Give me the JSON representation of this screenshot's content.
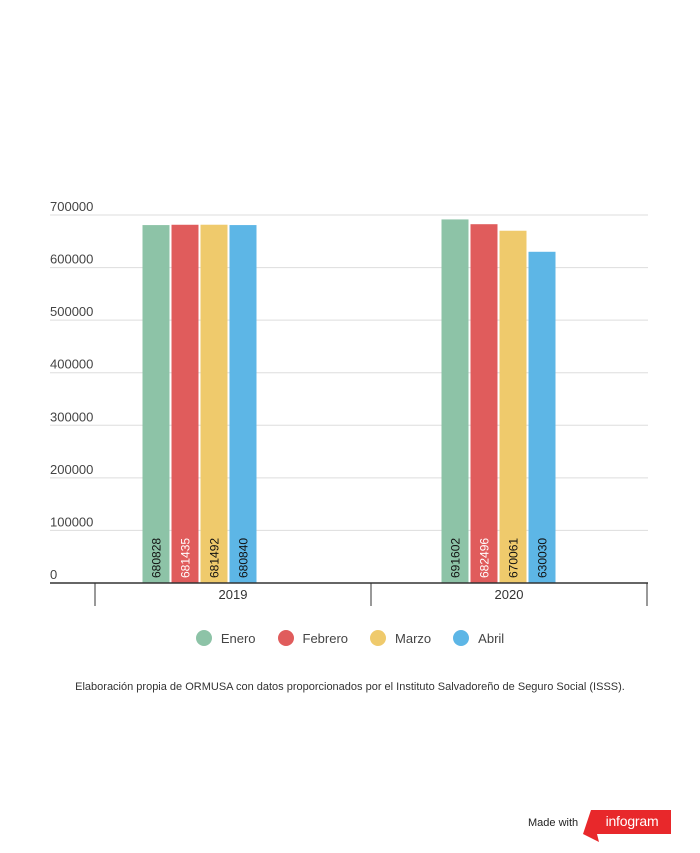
{
  "chart_data": {
    "type": "bar",
    "categories": [
      "2019",
      "2020"
    ],
    "series": [
      {
        "name": "Enero",
        "color": "#8dc3a7",
        "values": [
          680828,
          691602
        ]
      },
      {
        "name": "Febrero",
        "color": "#e05c5c",
        "values": [
          681435,
          682496
        ]
      },
      {
        "name": "Marzo",
        "color": "#efca6c",
        "values": [
          681492,
          670061
        ]
      },
      {
        "name": "Abril",
        "color": "#5db6e6",
        "values": [
          680840,
          630030
        ]
      }
    ],
    "yticks": [
      "700000",
      "600000",
      "500000",
      "400000",
      "300000",
      "200000",
      "100000",
      "0"
    ],
    "ylim": [
      0,
      700000
    ],
    "grid": true,
    "legend_position": "bottom"
  },
  "source_note": "Elaboración propia de ORMUSA con datos proporcionados por el Instituto Salvadoreño de Seguro Social (ISSS).",
  "footer": {
    "made_with": "Made with",
    "brand": "infogram",
    "brand_color": "#e8282b"
  }
}
